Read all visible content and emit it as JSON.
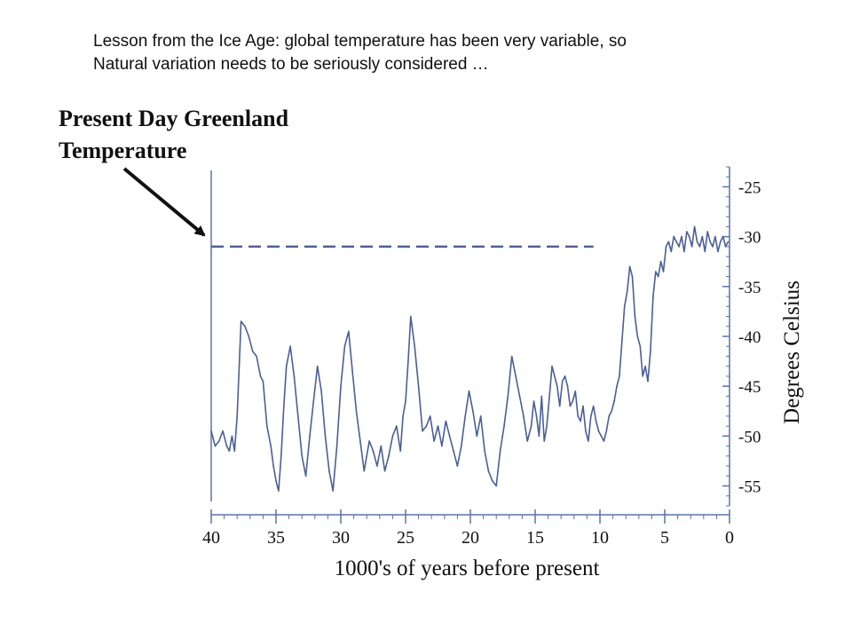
{
  "caption": {
    "line1": "Lesson from the Ice Age: global temperature has been very variable, so",
    "line2": "Natural variation needs to be seriously considered …"
  },
  "chart_data": {
    "type": "line",
    "title": "Present Day Greenland Temperature",
    "title_lines": [
      "Present Day Greenland",
      "Temperature"
    ],
    "xlabel": "1000's of years before present",
    "ylabel": "Degrees Celsius",
    "xlim": [
      40,
      0
    ],
    "ylim": [
      -57,
      -23
    ],
    "x_ticks": [
      40,
      35,
      30,
      25,
      20,
      15,
      10,
      5,
      0
    ],
    "x_tick_labels": [
      "40",
      "35",
      "30",
      "25",
      "20",
      "15",
      "10",
      "5",
      "0"
    ],
    "y_ticks": [
      -25,
      -30,
      -35,
      -40,
      -45,
      -50,
      -55
    ],
    "y_tick_labels": [
      "-25",
      "-30",
      "-35",
      "-40",
      "-45",
      "-50",
      "-55"
    ],
    "present_day_temperature": -31,
    "annotation": "Present Day Greenland Temperature",
    "grid": false,
    "colors": {
      "series": "#4a5f95",
      "axis": "#5b72a8",
      "text": "#111111"
    },
    "series": [
      {
        "x": [
          40,
          39.7,
          39.4,
          39.1,
          38.8,
          38.6,
          38.4,
          38.2,
          38.0,
          37.7,
          37.4,
          37.1,
          36.8,
          36.5,
          36.2,
          36.0,
          35.7,
          35.4,
          35.2,
          35.0,
          34.8,
          34.6,
          34.4,
          34.2,
          33.9,
          33.6,
          33.3,
          33.0,
          32.7,
          32.4,
          32.1,
          31.8,
          31.5,
          31.2,
          30.9,
          30.6,
          30.3,
          30.0,
          29.7,
          29.4,
          29.1,
          28.8,
          28.5,
          28.2,
          28.0,
          27.8,
          27.5,
          27.2,
          26.9,
          26.6,
          26.3,
          26.0,
          25.7,
          25.4,
          25.2,
          25.0,
          24.8,
          24.6,
          24.3,
          24.0,
          23.7,
          23.4,
          23.1,
          22.8,
          22.5,
          22.2,
          21.9,
          21.6,
          21.3,
          21.0,
          20.7,
          20.4,
          20.1,
          19.8,
          19.5,
          19.2,
          18.9,
          18.6,
          18.3,
          18.0,
          17.7,
          17.4,
          17.1,
          16.8,
          16.5,
          16.2,
          15.9,
          15.6,
          15.3,
          15.1,
          14.9,
          14.7,
          14.5,
          14.3,
          14.1,
          13.9,
          13.7,
          13.5,
          13.3,
          13.1,
          12.9,
          12.7,
          12.5,
          12.3,
          12.1,
          11.9,
          11.7,
          11.5,
          11.3,
          11.1,
          10.9,
          10.7,
          10.5,
          10.3,
          10.1,
          9.9,
          9.7,
          9.5,
          9.3,
          9.1,
          8.9,
          8.7,
          8.5,
          8.3,
          8.1,
          7.9,
          7.7,
          7.5,
          7.3,
          7.1,
          6.9,
          6.7,
          6.5,
          6.3,
          6.1,
          5.9,
          5.7,
          5.5,
          5.3,
          5.1,
          4.9,
          4.7,
          4.5,
          4.3,
          4.1,
          3.9,
          3.7,
          3.5,
          3.3,
          3.1,
          2.9,
          2.7,
          2.5,
          2.3,
          2.1,
          1.9,
          1.7,
          1.5,
          1.3,
          1.1,
          0.9,
          0.7,
          0.5,
          0.3,
          0.1
        ],
        "y": [
          -49.5,
          -51.0,
          -50.5,
          -49.5,
          -51.0,
          -51.5,
          -50.0,
          -51.5,
          -48.0,
          -38.5,
          -39.0,
          -40.0,
          -41.5,
          -42.0,
          -44.0,
          -44.5,
          -49.0,
          -51.0,
          -53.0,
          -54.5,
          -55.5,
          -52.0,
          -47.0,
          -43.0,
          -41.0,
          -44.0,
          -48.0,
          -52.0,
          -54.0,
          -50.0,
          -46.5,
          -43.0,
          -45.5,
          -50.0,
          -53.5,
          -55.5,
          -51.0,
          -45.0,
          -41.0,
          -39.5,
          -43.5,
          -47.5,
          -50.5,
          -53.5,
          -52.0,
          -50.5,
          -51.5,
          -53.0,
          -51.0,
          -53.5,
          -52.0,
          -50.0,
          -49.0,
          -51.5,
          -48.0,
          -46.5,
          -42.5,
          -38.0,
          -41.0,
          -45.0,
          -49.5,
          -49.0,
          -48.0,
          -50.5,
          -49.0,
          -51.0,
          -48.5,
          -50.0,
          -51.5,
          -53.0,
          -51.0,
          -48.0,
          -45.5,
          -47.5,
          -50.0,
          -48.0,
          -51.5,
          -53.5,
          -54.5,
          -55.0,
          -51.5,
          -49.0,
          -46.0,
          -42.0,
          -44.0,
          -46.0,
          -48.0,
          -50.5,
          -49.0,
          -46.5,
          -48.0,
          -50.0,
          -46.0,
          -50.5,
          -49.0,
          -46.0,
          -43.0,
          -44.0,
          -45.0,
          -47.0,
          -44.5,
          -44.0,
          -45.0,
          -47.0,
          -46.5,
          -45.5,
          -48.0,
          -48.5,
          -47.0,
          -49.5,
          -50.5,
          -48.0,
          -47.0,
          -48.5,
          -49.5,
          -50.0,
          -50.5,
          -49.5,
          -48.0,
          -47.5,
          -46.5,
          -45.0,
          -44.0,
          -40.5,
          -37.0,
          -35.5,
          -33.0,
          -34.0,
          -38.0,
          -40.0,
          -41.0,
          -44.0,
          -43.0,
          -44.5,
          -41.5,
          -36.0,
          -33.5,
          -34.0,
          -32.5,
          -33.5,
          -31.0,
          -30.5,
          -31.5,
          -30.0,
          -30.5,
          -31.0,
          -30.0,
          -31.5,
          -29.5,
          -30.0,
          -31.0,
          -29.0,
          -30.5,
          -31.0,
          -30.0,
          -31.5,
          -29.5,
          -30.5,
          -31.0,
          -30.0,
          -31.5,
          -30.5,
          -30.0,
          -31.0,
          -30.5
        ]
      }
    ]
  }
}
